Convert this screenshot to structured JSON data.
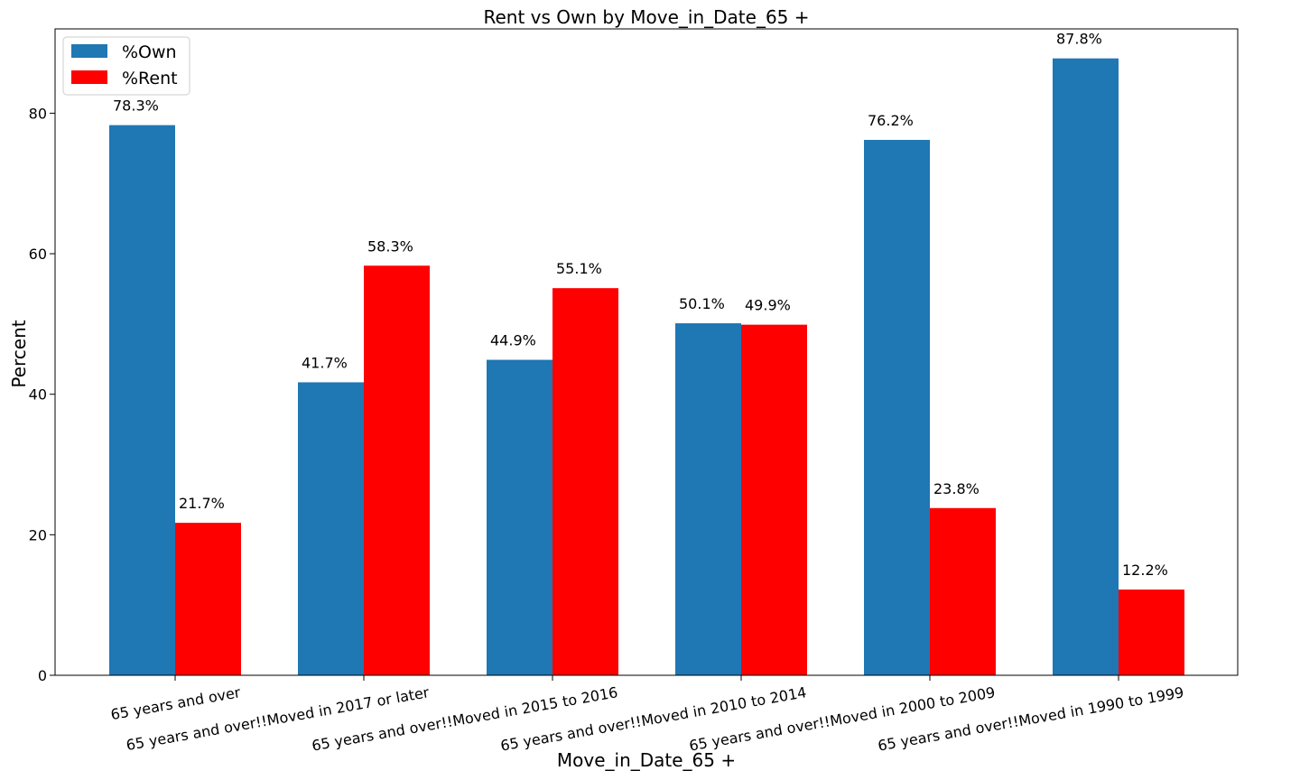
{
  "chart_data": {
    "type": "bar",
    "title": "Rent vs Own by Move_in_Date_65 +",
    "xlabel": "Move_in_Date_65 +",
    "ylabel": "Percent",
    "ylim": [
      0,
      92
    ],
    "yticks": [
      0,
      20,
      40,
      60,
      80
    ],
    "categories": [
      "65 years and over",
      "65 years and over!!Moved in 2017 or later",
      "65 years and over!!Moved in 2015 to 2016",
      "65 years and over!!Moved in 2010 to 2014",
      "65 years and over!!Moved in 2000 to 2009",
      "65 years and over!!Moved in 1990 to 1999"
    ],
    "series": [
      {
        "name": "%Own",
        "color": "#1f77b4",
        "values": [
          78.3,
          41.7,
          44.9,
          50.1,
          76.2,
          87.8
        ],
        "labels": [
          "78.3%",
          "41.7%",
          "44.9%",
          "50.1%",
          "76.2%",
          "87.8%"
        ]
      },
      {
        "name": "%Rent",
        "color": "#ff0000",
        "values": [
          21.7,
          58.3,
          55.1,
          49.9,
          23.8,
          12.2
        ],
        "labels": [
          "21.7%",
          "58.3%",
          "55.1%",
          "49.9%",
          "23.8%",
          "12.2%"
        ]
      }
    ],
    "grid": false,
    "legend_position": "top-left"
  }
}
